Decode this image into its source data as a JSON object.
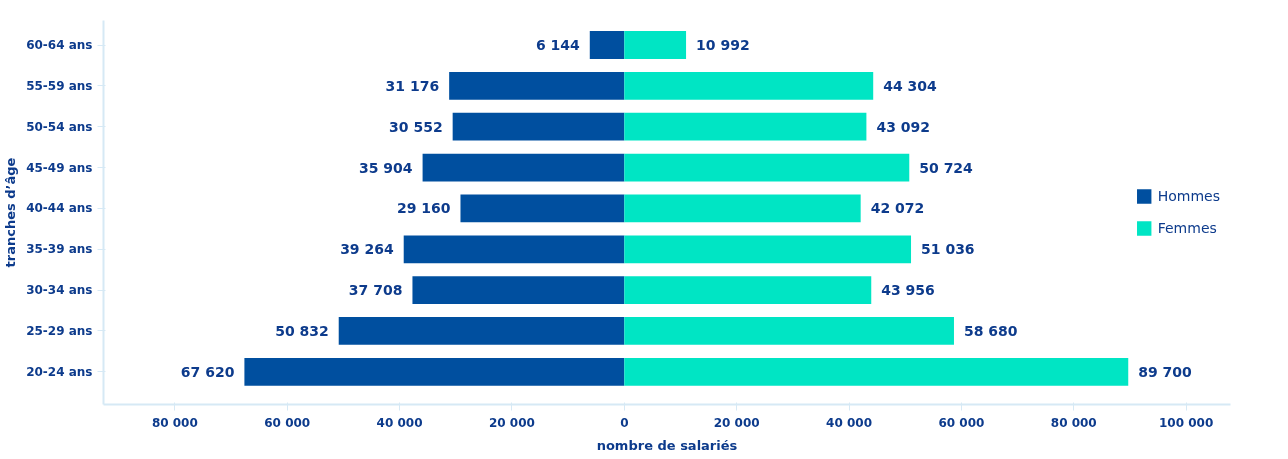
{
  "chart_data": {
    "type": "bar",
    "orientation": "horizontal",
    "xlabel": "nombre de salariés",
    "ylabel": "tranches d’âge",
    "categories": [
      "60-64 ans",
      "55-59 ans",
      "50-54 ans",
      "45-49 ans",
      "40-44 ans",
      "35-39 ans",
      "30-34 ans",
      "25-29 ans",
      "20-24 ans"
    ],
    "series": [
      {
        "name": "Hommes",
        "color": "#004f9f",
        "base": [
          -6144,
          -31176,
          -30552,
          -35904,
          -29160,
          -39264,
          -37708,
          -50832,
          -67620
        ],
        "values": [
          6144,
          31176,
          30552,
          35904,
          29160,
          39264,
          37708,
          50832,
          67620
        ],
        "value_labels": [
          "6 144",
          "31 176",
          "30 552",
          "35 904",
          "29 160",
          "39 264",
          "37 708",
          "50 832",
          "67 620"
        ]
      },
      {
        "name": "Femmes",
        "color": "#00e5c4",
        "base": [
          0,
          0,
          0,
          0,
          0,
          0,
          0,
          0,
          0
        ],
        "values": [
          10992,
          44304,
          43092,
          50724,
          42072,
          51036,
          43956,
          58680,
          89700
        ],
        "value_labels": [
          "10 992",
          "44 304",
          "43 092",
          "50 724",
          "42 072",
          "51 036",
          "43 956",
          "58 680",
          "89 700"
        ]
      }
    ],
    "xlim": [
      -92700,
      107900
    ],
    "xticks": [
      {
        "value": -80000,
        "label": "80 000"
      },
      {
        "value": -60000,
        "label": "60 000"
      },
      {
        "value": -40000,
        "label": "40 000"
      },
      {
        "value": -20000,
        "label": "20 000"
      },
      0,
      {
        "value": 20000,
        "label": "20 000"
      },
      {
        "value": 40000,
        "label": "40 000"
      },
      {
        "value": 60000,
        "label": "60 000"
      },
      {
        "value": 80000,
        "label": "80 000"
      },
      {
        "value": 100000,
        "label": "100 000"
      }
    ],
    "grid": false,
    "legend": "right"
  }
}
